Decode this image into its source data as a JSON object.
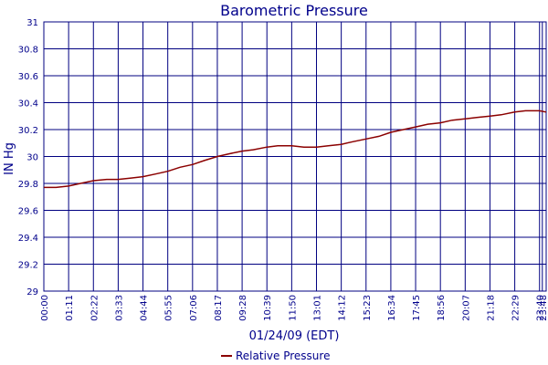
{
  "chart_data": {
    "type": "line",
    "title": "Barometric Pressure",
    "xlabel": "01/24/09 (EDT)",
    "ylabel": "IN Hg",
    "ylim": [
      29,
      31
    ],
    "yticks": [
      "29",
      "29.2",
      "29.4",
      "29.6",
      "29.8",
      "30",
      "30.2",
      "30.4",
      "30.6",
      "30.8",
      "31"
    ],
    "xlim": [
      "00:00",
      "23:59"
    ],
    "xticks": [
      "00:00",
      "01:11",
      "02:22",
      "03:33",
      "04:44",
      "05:55",
      "07:06",
      "08:17",
      "09:28",
      "10:39",
      "11:50",
      "13:01",
      "14:12",
      "15:23",
      "16:34",
      "17:45",
      "18:56",
      "20:07",
      "21:18",
      "22:29",
      "23:40",
      "23:48"
    ],
    "grid": true,
    "legend_position": "bottom",
    "series": [
      {
        "name": "Relative Pressure",
        "color": "#8b0000",
        "x": [
          "00:00",
          "00:35",
          "01:11",
          "01:45",
          "02:22",
          "03:00",
          "03:33",
          "04:10",
          "04:44",
          "05:20",
          "05:55",
          "06:30",
          "07:06",
          "07:40",
          "08:17",
          "08:50",
          "09:28",
          "10:00",
          "10:39",
          "11:10",
          "11:50",
          "12:25",
          "13:01",
          "13:35",
          "14:12",
          "14:45",
          "15:23",
          "16:00",
          "16:34",
          "17:10",
          "17:45",
          "18:20",
          "18:56",
          "19:30",
          "20:07",
          "20:40",
          "21:18",
          "21:50",
          "22:29",
          "23:00",
          "23:20",
          "23:40",
          "23:59"
        ],
        "values": [
          29.77,
          29.77,
          29.78,
          29.8,
          29.82,
          29.83,
          29.83,
          29.84,
          29.85,
          29.87,
          29.89,
          29.92,
          29.94,
          29.97,
          30.0,
          30.02,
          30.04,
          30.05,
          30.07,
          30.08,
          30.08,
          30.07,
          30.07,
          30.08,
          30.09,
          30.11,
          30.13,
          30.15,
          30.18,
          30.2,
          30.22,
          30.24,
          30.25,
          30.27,
          30.28,
          30.29,
          30.3,
          30.31,
          30.33,
          30.34,
          30.34,
          30.34,
          30.33
        ]
      }
    ]
  },
  "colors": {
    "grid": "#000080",
    "text": "#00008b",
    "line": "#8b0000",
    "background": "#ffffff"
  }
}
